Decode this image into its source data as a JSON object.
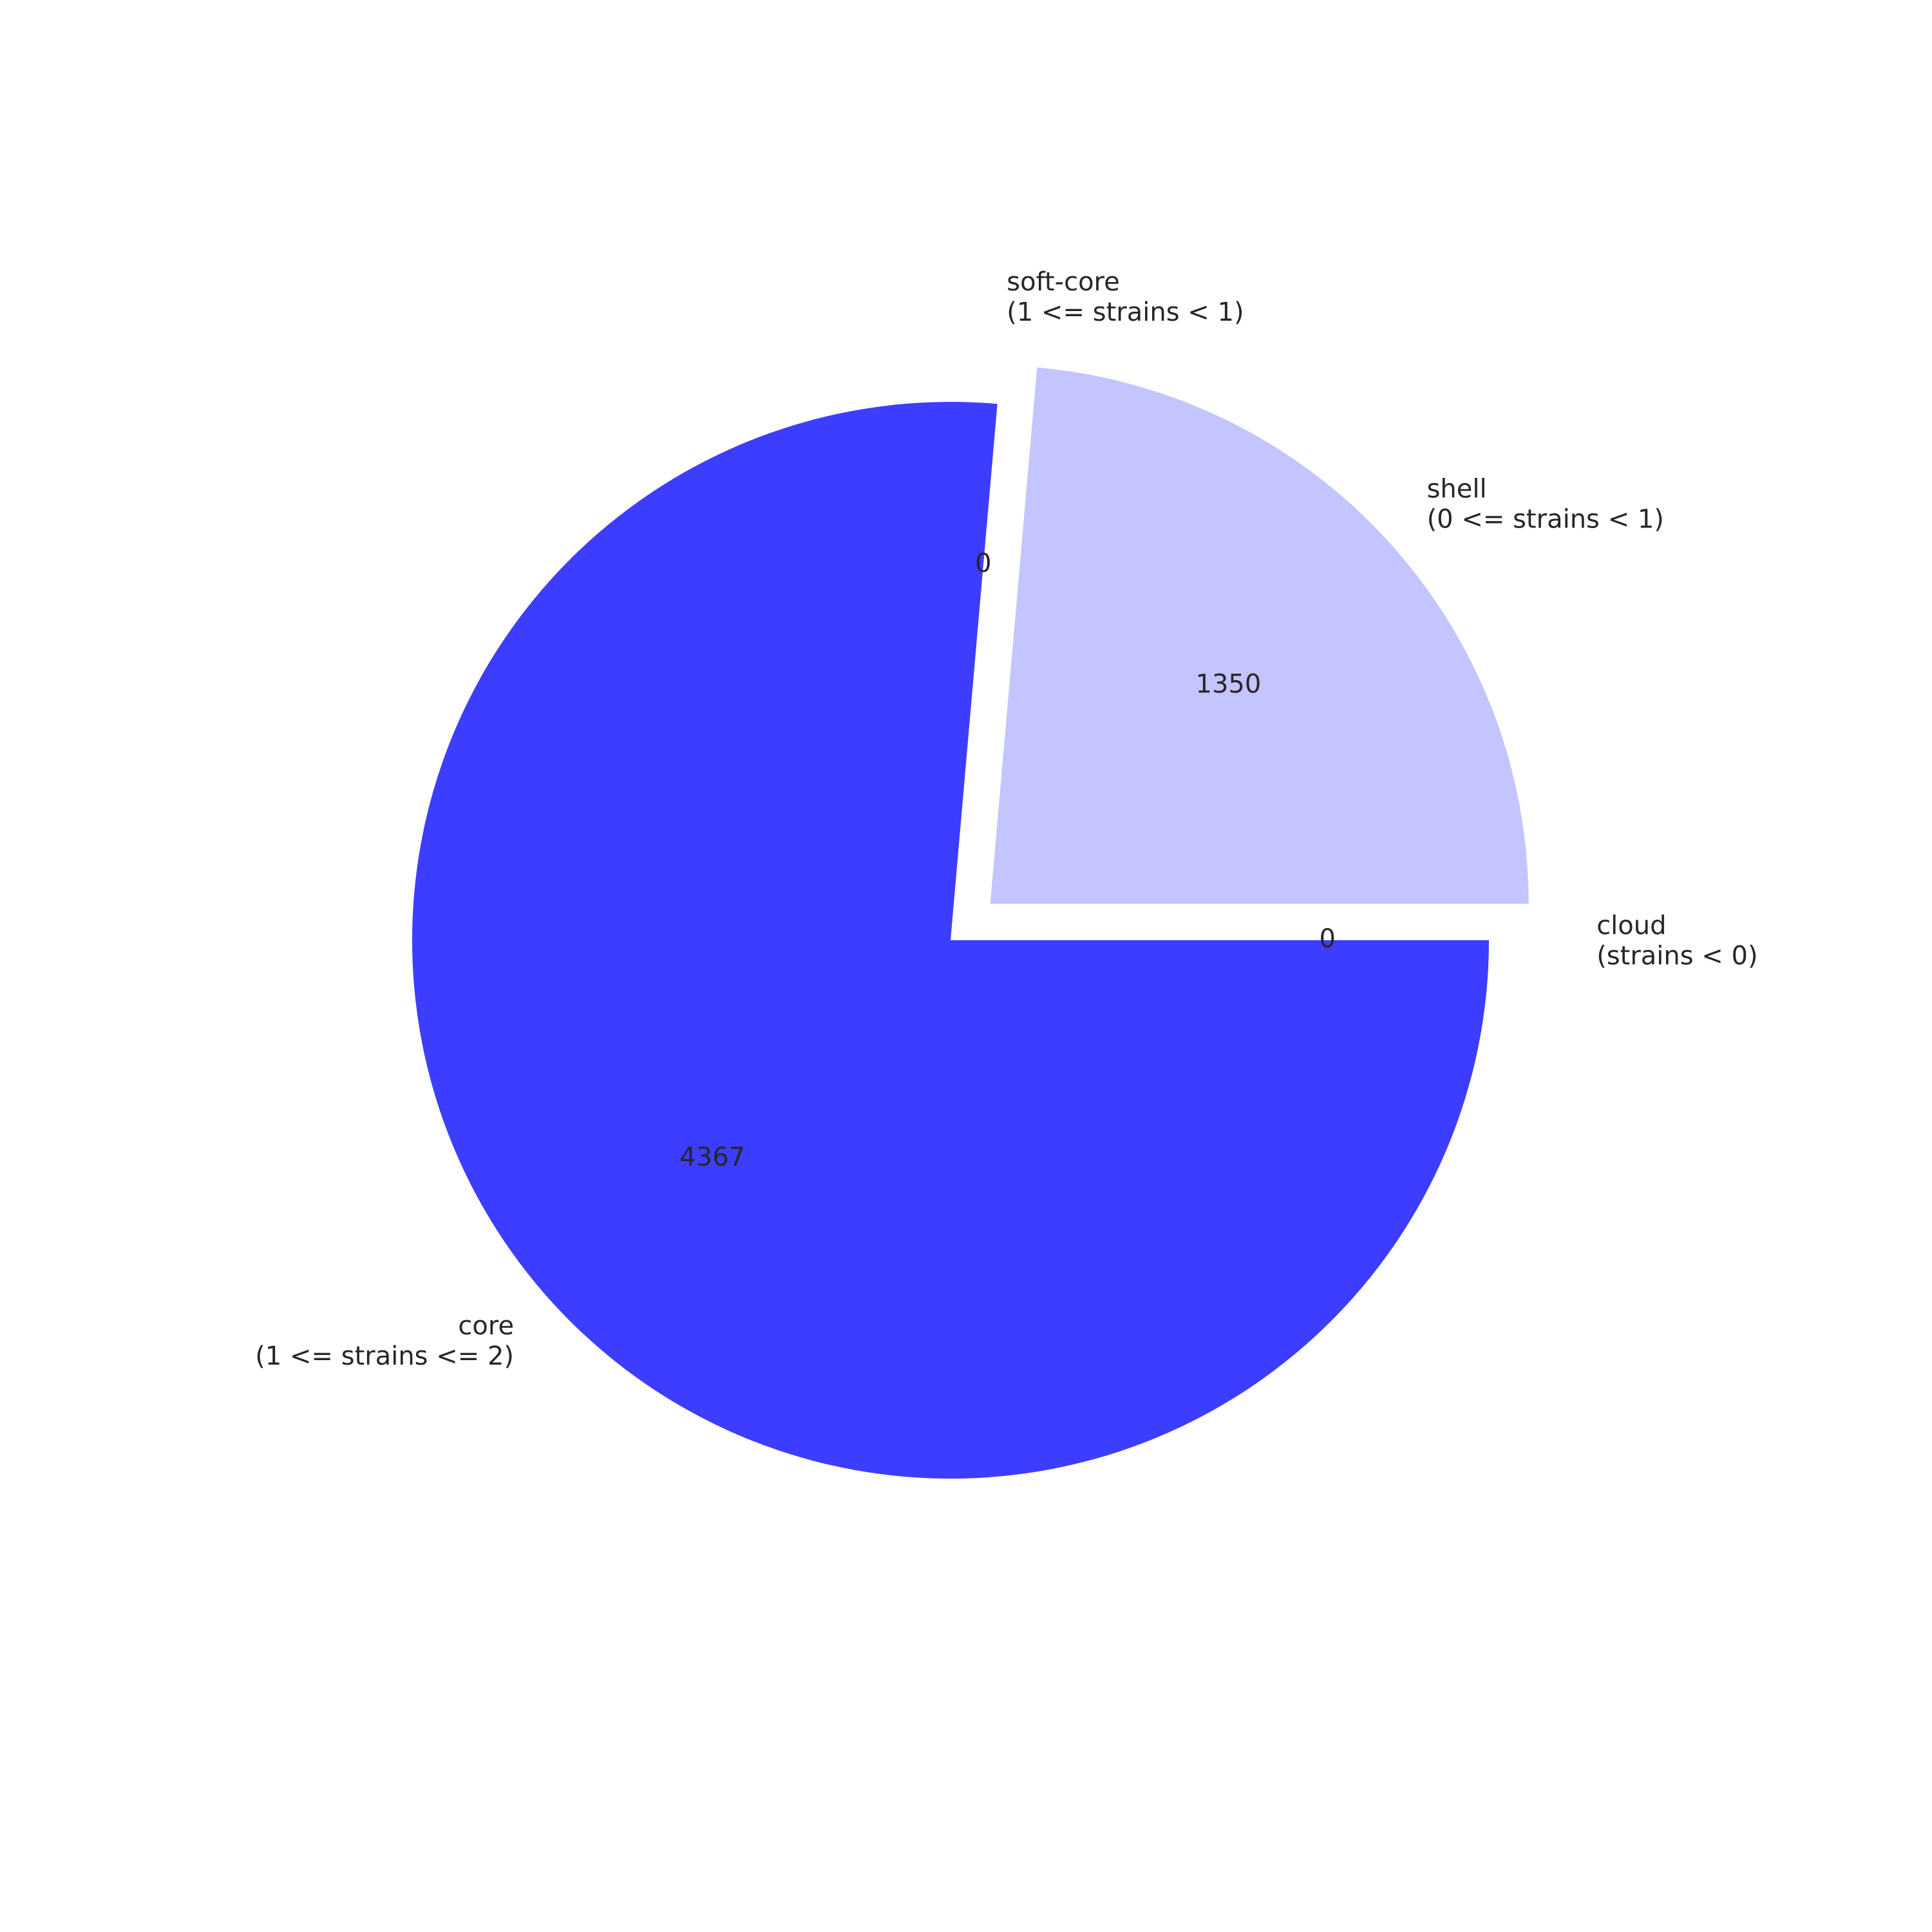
{
  "chart_data": {
    "type": "pie",
    "start_angle_deg": 0,
    "direction": "clockwise",
    "slices": [
      {
        "label_lines": [
          "core",
          "(1 <= strains <= 2)"
        ],
        "value": 4367,
        "value_label": "4367",
        "color": "#3d3dff",
        "exploded": false
      },
      {
        "label_lines": [
          "soft-core",
          "(1 <= strains < 1)"
        ],
        "value": 0,
        "value_label": "0",
        "color": "#7f7fff",
        "exploded": true
      },
      {
        "label_lines": [
          "shell",
          "(0 <= strains < 1)"
        ],
        "value": 1350,
        "value_label": "1350",
        "color": "#c4c4ff",
        "exploded": true
      },
      {
        "label_lines": [
          "cloud",
          "(strains < 0)"
        ],
        "value": 0,
        "value_label": "0",
        "color": "#ffffff",
        "exploded": true
      }
    ]
  }
}
